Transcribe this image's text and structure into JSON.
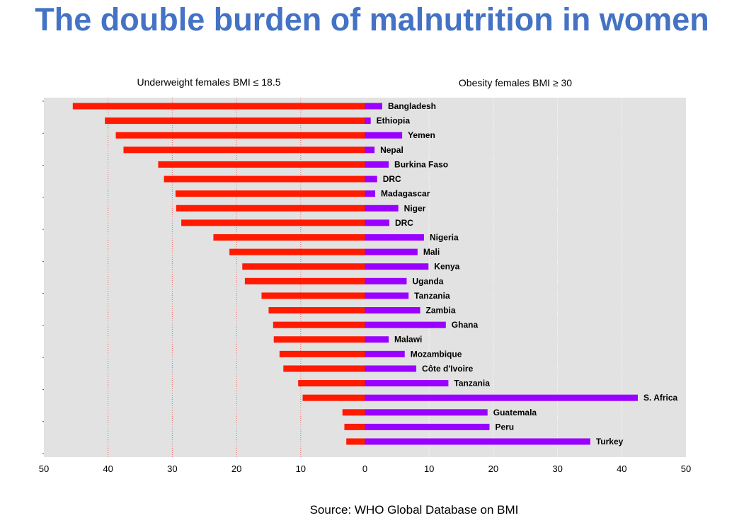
{
  "title": "The double burden of malnutrition in women",
  "source": "Source: WHO Global Database on BMI",
  "chart_data": {
    "type": "bar",
    "orientation": "horizontal-diverging",
    "left_label": "Underweight females BMI ≤ 18.5",
    "right_label": "Obesity females BMI ≥ 30",
    "xlim": [
      -50,
      50
    ],
    "ticks": [
      50,
      40,
      30,
      20,
      10,
      0,
      10,
      20,
      30,
      40,
      50
    ],
    "colors": {
      "underweight": "#ff1a00",
      "obesity": "#9900ff",
      "plot_bg": "#e2e2e2"
    },
    "categories": [
      "Bangladesh",
      "Ethiopia",
      "Yemen",
      "Nepal",
      "Burkina Faso",
      "DRC",
      "Madagascar",
      "Niger",
      "DRC",
      "Nigeria",
      "Mali",
      "Kenya",
      "Uganda",
      "Tanzania",
      "Zambia",
      "Ghana",
      "Malawi",
      "Mozambique",
      "Côte d'Ivoire",
      "Tanzania",
      "S. Africa",
      "Guatemala",
      "Peru",
      "Turkey"
    ],
    "series": [
      {
        "name": "Underweight females BMI ≤ 18.5",
        "values": [
          45.5,
          40.5,
          38.8,
          37.6,
          32.2,
          31.3,
          29.5,
          29.4,
          28.6,
          23.6,
          21.1,
          19.1,
          18.7,
          16.1,
          15.0,
          14.3,
          14.2,
          13.3,
          12.7,
          10.4,
          9.7,
          3.5,
          3.2,
          2.9
        ]
      },
      {
        "name": "Obesity females BMI ≥ 30",
        "values": [
          2.7,
          0.9,
          5.8,
          1.5,
          3.7,
          1.9,
          1.6,
          5.2,
          3.8,
          9.2,
          8.2,
          9.9,
          6.5,
          6.8,
          8.6,
          12.6,
          3.7,
          6.2,
          8.0,
          13.0,
          42.5,
          19.1,
          19.4,
          35.1
        ]
      }
    ],
    "grid": true
  }
}
